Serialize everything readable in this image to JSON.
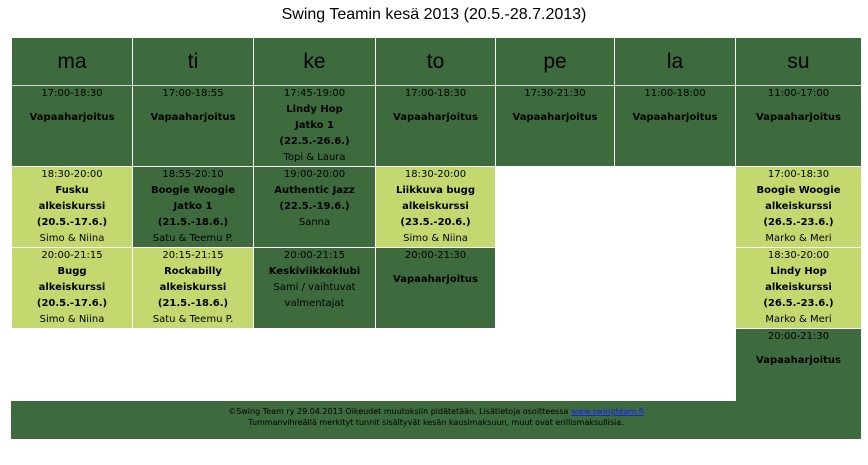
{
  "title": "Swing Teamin kesä 2013 (20.5.-28.7.2013)",
  "days": [
    "ma",
    "ti",
    "ke",
    "to",
    "pe",
    "la",
    "su"
  ],
  "rows": [
    [
      {
        "color": "dark",
        "lines": [
          "17:00-18:30"
        ],
        "gap": true,
        "bold": [
          "Vapaaharjoitus"
        ],
        "teacher": ""
      },
      {
        "color": "dark",
        "lines": [
          "17:00-18:55"
        ],
        "gap": true,
        "bold": [
          "Vapaaharjoitus"
        ],
        "teacher": ""
      },
      {
        "color": "dark",
        "lines": [
          "17:45-19:00"
        ],
        "gap": false,
        "bold": [
          "Lindy Hop",
          "Jatko 1",
          "(22.5.-26.6.)"
        ],
        "teacher": "Topi & Laura"
      },
      {
        "color": "dark",
        "lines": [
          "17:00-18:30"
        ],
        "gap": true,
        "bold": [
          "Vapaaharjoitus"
        ],
        "teacher": ""
      },
      {
        "color": "dark",
        "lines": [
          "17:30-21:30"
        ],
        "gap": true,
        "bold": [
          "Vapaaharjoitus"
        ],
        "teacher": ""
      },
      {
        "color": "dark",
        "lines": [
          "11:00-18:00"
        ],
        "gap": true,
        "bold": [
          "Vapaaharjoitus"
        ],
        "teacher": ""
      },
      {
        "color": "dark",
        "lines": [
          "11:00-17:00"
        ],
        "gap": true,
        "bold": [
          "Vapaaharjoitus"
        ],
        "teacher": ""
      }
    ],
    [
      {
        "color": "light",
        "lines": [
          "18:30-20:00"
        ],
        "gap": false,
        "bold": [
          "Fusku",
          "alkeiskurssi",
          "(20.5.-17.6.)"
        ],
        "teacher": "Simo & Niina"
      },
      {
        "color": "dark",
        "lines": [
          "18:55-20:10"
        ],
        "gap": false,
        "bold": [
          "Boogie Woogie",
          "Jatko 1",
          "(21.5.-18.6.)"
        ],
        "teacher": "Satu & Teemu P."
      },
      {
        "color": "dark",
        "lines": [
          "19:00-20:00"
        ],
        "gap": false,
        "bold": [
          "Authentic Jazz",
          "(22.5.-19.6.)"
        ],
        "teacher": "Sanna"
      },
      {
        "color": "light",
        "lines": [
          "18:30-20:00"
        ],
        "gap": false,
        "bold": [
          "Liikkuva bugg",
          "alkeiskurssi",
          "(23.5.-20.6.)"
        ],
        "teacher": "Simo & Niina"
      },
      {
        "color": "empty",
        "lines": [],
        "gap": false,
        "bold": [],
        "teacher": ""
      },
      {
        "color": "empty",
        "lines": [],
        "gap": false,
        "bold": [],
        "teacher": ""
      },
      {
        "color": "light",
        "lines": [
          "17:00-18:30"
        ],
        "gap": false,
        "bold": [
          "Boogie Woogie",
          "alkeiskurssi",
          "(26.5.-23.6.)"
        ],
        "teacher": "Marko & Meri"
      }
    ],
    [
      {
        "color": "light",
        "lines": [
          "20:00-21:15"
        ],
        "gap": false,
        "bold": [
          "Bugg",
          "alkeiskurssi",
          "(20.5.-17.6.)"
        ],
        "teacher": "Simo & Niina"
      },
      {
        "color": "light",
        "lines": [
          "20:15-21:15"
        ],
        "gap": false,
        "bold": [
          "Rockabilly",
          "alkeiskurssi",
          "(21.5.-18.6.)"
        ],
        "teacher": "Satu & Teemu P."
      },
      {
        "color": "dark",
        "lines": [
          "20:00-21:15"
        ],
        "gap": false,
        "bold": [
          "Keskiviikkoklubi"
        ],
        "teacher": "Sami / vaihtuvat valmentajat"
      },
      {
        "color": "dark",
        "lines": [
          "20:00-21:30"
        ],
        "gap": true,
        "bold": [
          "Vapaaharjoitus"
        ],
        "teacher": ""
      },
      {
        "color": "empty",
        "lines": [],
        "gap": false,
        "bold": [],
        "teacher": ""
      },
      {
        "color": "empty",
        "lines": [],
        "gap": false,
        "bold": [],
        "teacher": ""
      },
      {
        "color": "light",
        "lines": [
          "18:30-20:00"
        ],
        "gap": false,
        "bold": [
          "Lindy Hop",
          "alkeiskurssi",
          "(26.5.-23.6.)"
        ],
        "teacher": "Marko & Meri"
      }
    ],
    [
      {
        "color": "empty",
        "lines": [],
        "gap": false,
        "bold": [],
        "teacher": ""
      },
      {
        "color": "empty",
        "lines": [],
        "gap": false,
        "bold": [],
        "teacher": ""
      },
      {
        "color": "empty",
        "lines": [],
        "gap": false,
        "bold": [],
        "teacher": ""
      },
      {
        "color": "empty",
        "lines": [],
        "gap": false,
        "bold": [],
        "teacher": ""
      },
      {
        "color": "empty",
        "lines": [],
        "gap": false,
        "bold": [],
        "teacher": ""
      },
      {
        "color": "empty",
        "lines": [],
        "gap": false,
        "bold": [],
        "teacher": ""
      },
      {
        "color": "dark",
        "lines": [
          "20:00-21:30"
        ],
        "gap": true,
        "bold": [
          "Vapaaharjoitus"
        ],
        "teacher": ""
      }
    ]
  ],
  "footer": {
    "line1_prefix": "©Swing Team ry  29.04.2013 Oikeudet muutoksiin pidätetään. Lisätietoja osoitteessa ",
    "link_text": "www.swingteam.fi",
    "line2": "Tummanvihreällä merkityt tunnit sisältyvät kesän kausimaksuun, muut ovat erillismaksullisia."
  },
  "colors": {
    "dark": "#3d6b3d",
    "light": "#c3d86e"
  }
}
